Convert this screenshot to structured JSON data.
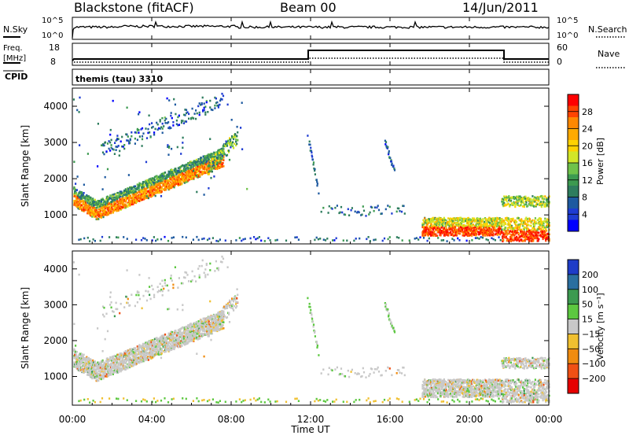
{
  "header": {
    "site": "Blackstone (fitACF)",
    "beam": "Beam 00",
    "date": "14/Jun/2011"
  },
  "noise_panel": {
    "left_label": "N.Sky",
    "left_ticks": [
      "10^5",
      "10^0"
    ],
    "right_label": "N.Search",
    "right_ticks": [
      "10^5",
      "10^0"
    ]
  },
  "freq_panel": {
    "left_label_1": "Freq.",
    "left_label_2": "[MHz]",
    "left_ticks": [
      "18",
      "8"
    ],
    "right_label": "Nave",
    "right_ticks": [
      "60",
      "0"
    ]
  },
  "cpid_panel": {
    "label": "CPID",
    "program": "themis (tau) 3310"
  },
  "time_axis": {
    "ticks": [
      "00:00",
      "04:00",
      "08:00",
      "12:00",
      "16:00",
      "20:00",
      "00:00"
    ],
    "label": "Time UT"
  },
  "power_scale": {
    "label": "Power [dB]",
    "ticks": [
      "28",
      "24",
      "20",
      "16",
      "12",
      "8",
      "4"
    ],
    "colors": [
      "#ff0000",
      "#ff4400",
      "#ff8800",
      "#ffaa00",
      "#ffd200",
      "#d2e628",
      "#6fc24a",
      "#3c9a50",
      "#2e7d5e",
      "#1e5aa0",
      "#1e3cd2",
      "#0000ff"
    ]
  },
  "velocity_scale": {
    "label": "Velocity [m s⁻¹]",
    "ticks": [
      "200",
      "100",
      "50",
      "15",
      "-15",
      "-50",
      "-100",
      "-200"
    ],
    "colors": [
      "#1e3cc8",
      "#2a6fa0",
      "#3c9a50",
      "#5cc840",
      "#c8c8c8",
      "#f0c030",
      "#f08c10",
      "#f05014",
      "#e60000"
    ]
  },
  "chart_data": [
    {
      "type": "heatmap",
      "name": "power",
      "ylabel": "Slant Range [km]",
      "y_ticks": [
        "4000",
        "3000",
        "2000",
        "1000"
      ],
      "xlim_hours": [
        0,
        24
      ],
      "ylim_km": [
        200,
        4500
      ],
      "scatter_bands": [
        {
          "t_start": 0.1,
          "t_end": 7.5,
          "r_start": 1500,
          "r_end": 3000,
          "note": "main echo band rising",
          "level": "high"
        },
        {
          "t_start": 1.5,
          "t_end": 7.5,
          "r_start": 2900,
          "r_end": 4200,
          "note": "upper band",
          "level": "low"
        },
        {
          "t_start": 11.8,
          "t_end": 12.4,
          "r_start": 3300,
          "r_end": 1600,
          "note": "descending streak",
          "level": "low"
        },
        {
          "t_start": 15.7,
          "t_end": 16.2,
          "r_start": 3100,
          "r_end": 2200,
          "note": "descending streak",
          "level": "low"
        },
        {
          "t_start": 12.5,
          "t_end": 16.5,
          "r_start": 1100,
          "r_end": 1300,
          "note": "patchy",
          "level": "low"
        },
        {
          "t_start": 17.5,
          "t_end": 21.5,
          "r_start": 400,
          "r_end": 900,
          "note": "strong near range",
          "level": "high"
        },
        {
          "t_start": 21.5,
          "t_end": 24,
          "r_start": 300,
          "r_end": 1500,
          "note": "late echoes",
          "level": "high"
        }
      ]
    },
    {
      "type": "heatmap",
      "name": "velocity",
      "ylabel": "Slant Range [km]",
      "y_ticks": [
        "4000",
        "3000",
        "2000",
        "1000"
      ],
      "xlim_hours": [
        0,
        24
      ],
      "ylim_km": [
        200,
        4500
      ],
      "dominant_value": "-15 to 15"
    }
  ]
}
